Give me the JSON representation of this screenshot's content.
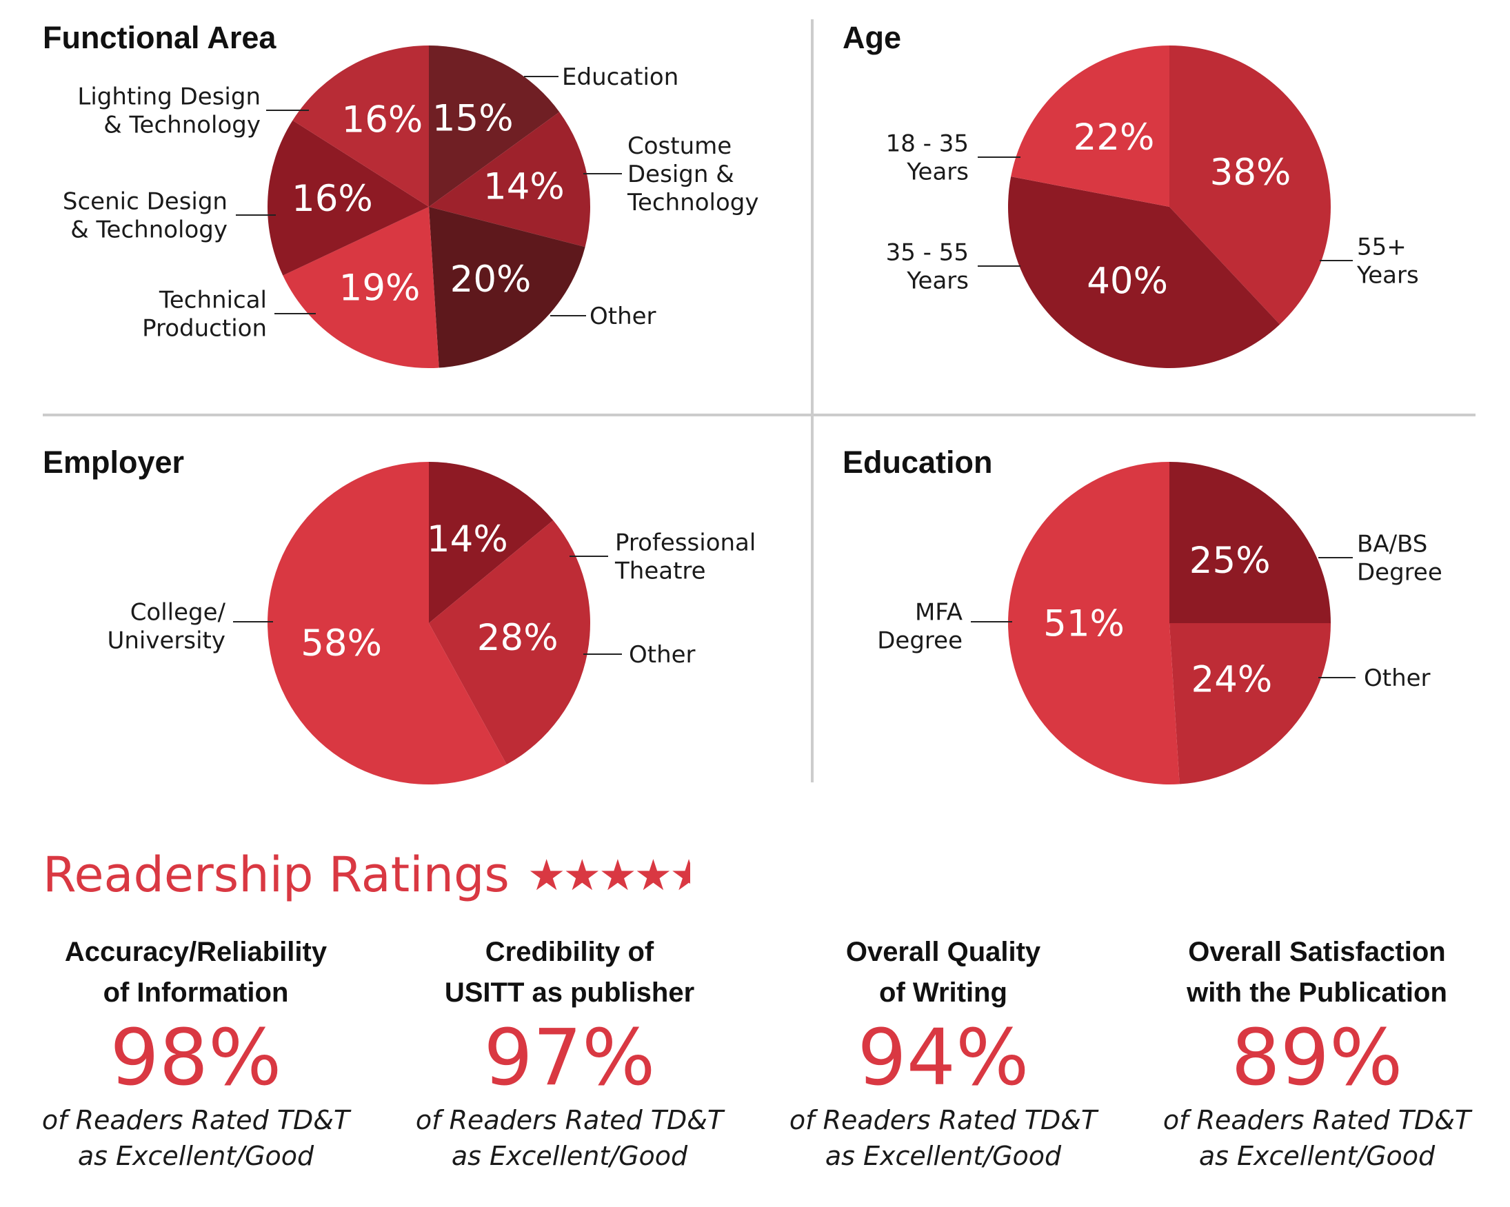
{
  "colors": {
    "red": "#d93842",
    "mid_red": "#be2c36",
    "dark_red": "#8e1a24",
    "maroon": "#701f24",
    "darkest": "#5e181c",
    "heading_red": "#d93842",
    "divider": "#cccccc"
  },
  "chart_data": [
    {
      "type": "pie",
      "title": "Functional Area",
      "slices": [
        {
          "label": "Education",
          "value": 15,
          "value_label": "15%",
          "color": "#701f24"
        },
        {
          "label": "Costume Design & Technology",
          "value": 14,
          "value_label": "14%",
          "color": "#9e222c"
        },
        {
          "label": "Other",
          "value": 20,
          "value_label": "20%",
          "color": "#5e181c"
        },
        {
          "label": "Technical Production",
          "value": 19,
          "value_label": "19%",
          "color": "#d93842"
        },
        {
          "label": "Scenic Design & Technology",
          "value": 16,
          "value_label": "16%",
          "color": "#8e1a24"
        },
        {
          "label": "Lighting Design & Technology",
          "value": 16,
          "value_label": "16%",
          "color": "#b82c36"
        }
      ],
      "callouts": [
        {
          "lines": [
            "Education"
          ]
        },
        {
          "lines": [
            "Costume",
            "Design &",
            "Technology"
          ]
        },
        {
          "lines": [
            "Other"
          ]
        },
        {
          "lines": [
            "Technical",
            "Production"
          ]
        },
        {
          "lines": [
            "Scenic Design",
            "& Technology"
          ]
        },
        {
          "lines": [
            "Lighting Design",
            "& Technology"
          ]
        }
      ]
    },
    {
      "type": "pie",
      "title": "Age",
      "slices": [
        {
          "label": "55+ Years",
          "value": 38,
          "value_label": "38%",
          "color": "#be2c36"
        },
        {
          "label": "35 - 55 Years",
          "value": 40,
          "value_label": "40%",
          "color": "#8e1a24"
        },
        {
          "label": "18 - 35 Years",
          "value": 22,
          "value_label": "22%",
          "color": "#d93842"
        }
      ],
      "callouts": [
        {
          "lines": [
            "55+",
            "Years"
          ]
        },
        {
          "lines": [
            "35 - 55",
            "Years"
          ]
        },
        {
          "lines": [
            "18 - 35",
            "Years"
          ]
        }
      ]
    },
    {
      "type": "pie",
      "title": "Employer",
      "slices": [
        {
          "label": "Professional Theatre",
          "value": 14,
          "value_label": "14%",
          "color": "#8e1a24"
        },
        {
          "label": "Other",
          "value": 28,
          "value_label": "28%",
          "color": "#be2c36"
        },
        {
          "label": "College/ University",
          "value": 58,
          "value_label": "58%",
          "color": "#d93842"
        }
      ],
      "callouts": [
        {
          "lines": [
            "Professional",
            "Theatre"
          ]
        },
        {
          "lines": [
            "Other"
          ]
        },
        {
          "lines": [
            "College/",
            "University"
          ]
        }
      ]
    },
    {
      "type": "pie",
      "title": "Education",
      "slices": [
        {
          "label": "BA/BS Degree",
          "value": 25,
          "value_label": "25%",
          "color": "#8e1a24"
        },
        {
          "label": "Other",
          "value": 24,
          "value_label": "24%",
          "color": "#be2c36"
        },
        {
          "label": "MFA Degree",
          "value": 51,
          "value_label": "51%",
          "color": "#d93842"
        }
      ],
      "callouts": [
        {
          "lines": [
            "BA/BS",
            "Degree"
          ]
        },
        {
          "lines": [
            "Other"
          ]
        },
        {
          "lines": [
            "MFA",
            "Degree"
          ]
        }
      ]
    }
  ],
  "ratings": {
    "heading": "Readership Ratings",
    "stars": {
      "glyph": "★",
      "rating": 4.5,
      "out_of": 5
    },
    "items": [
      {
        "title_line1": "Accuracy/Reliability",
        "title_line2": "of Information",
        "value": "98%",
        "caption_line1": "of Readers Rated TD&T",
        "caption_line2": "as Excellent/Good"
      },
      {
        "title_line1": "Credibility of",
        "title_line2": "USITT as publisher",
        "value": "97%",
        "caption_line1": "of Readers Rated TD&T",
        "caption_line2": "as Excellent/Good"
      },
      {
        "title_line1": "Overall Quality",
        "title_line2": "of Writing",
        "value": "94%",
        "caption_line1": "of Readers Rated TD&T",
        "caption_line2": "as Excellent/Good"
      },
      {
        "title_line1": "Overall Satisfaction",
        "title_line2": "with the Publication",
        "value": "89%",
        "caption_line1": "of Readers Rated TD&T",
        "caption_line2": "as Excellent/Good"
      }
    ]
  }
}
